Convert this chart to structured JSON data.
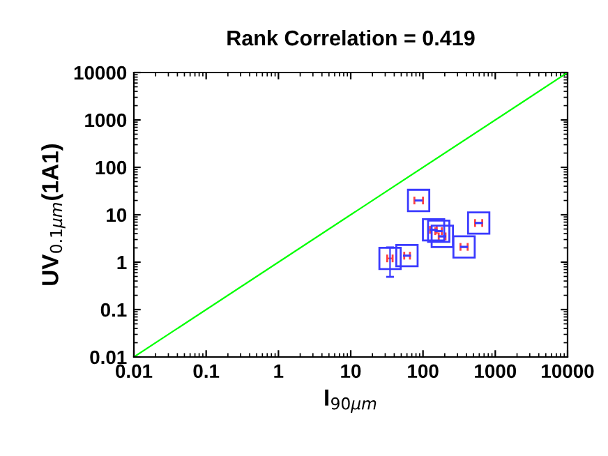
{
  "chart_data": {
    "type": "scatter",
    "title": "Rank Correlation = 0.419",
    "xlabel": "I$_{90μm}$",
    "ylabel": "UV$_{0.1μm}$(1A1)",
    "log": "xy",
    "marker": "square",
    "grid": false,
    "xlim": [
      0.01,
      10000
    ],
    "ylim": [
      0.01,
      10000
    ],
    "xticks": [
      0.01,
      0.1,
      1,
      10,
      100,
      1000,
      10000
    ],
    "yticks": [
      0.01,
      0.1,
      1,
      10,
      100,
      1000,
      10000
    ],
    "series": [
      {
        "color": "#3a3aff",
        "x": [
          87,
          35,
          60,
          140,
          165,
          185,
          370,
          590
        ],
        "values": [
          20,
          1.2,
          1.37,
          4.8,
          4.5,
          3.5,
          2.1,
          6.7
        ],
        "errors": [
          null,
          [
            0.49,
            2.05
          ],
          null,
          null,
          null,
          null,
          null,
          null
        ],
        "xerrors": [
          [
            76,
            100
          ],
          [
            32,
            38
          ],
          [
            55,
            66
          ],
          [
            125,
            155
          ],
          [
            148,
            182
          ],
          [
            165,
            205
          ],
          [
            330,
            415
          ],
          [
            525,
            660
          ]
        ]
      },
      {
        "type": "line",
        "color": "#00ff00",
        "x": [
          0.01,
          10000
        ],
        "values": [
          0.01,
          10000
        ],
        "marker": "none"
      }
    ]
  }
}
